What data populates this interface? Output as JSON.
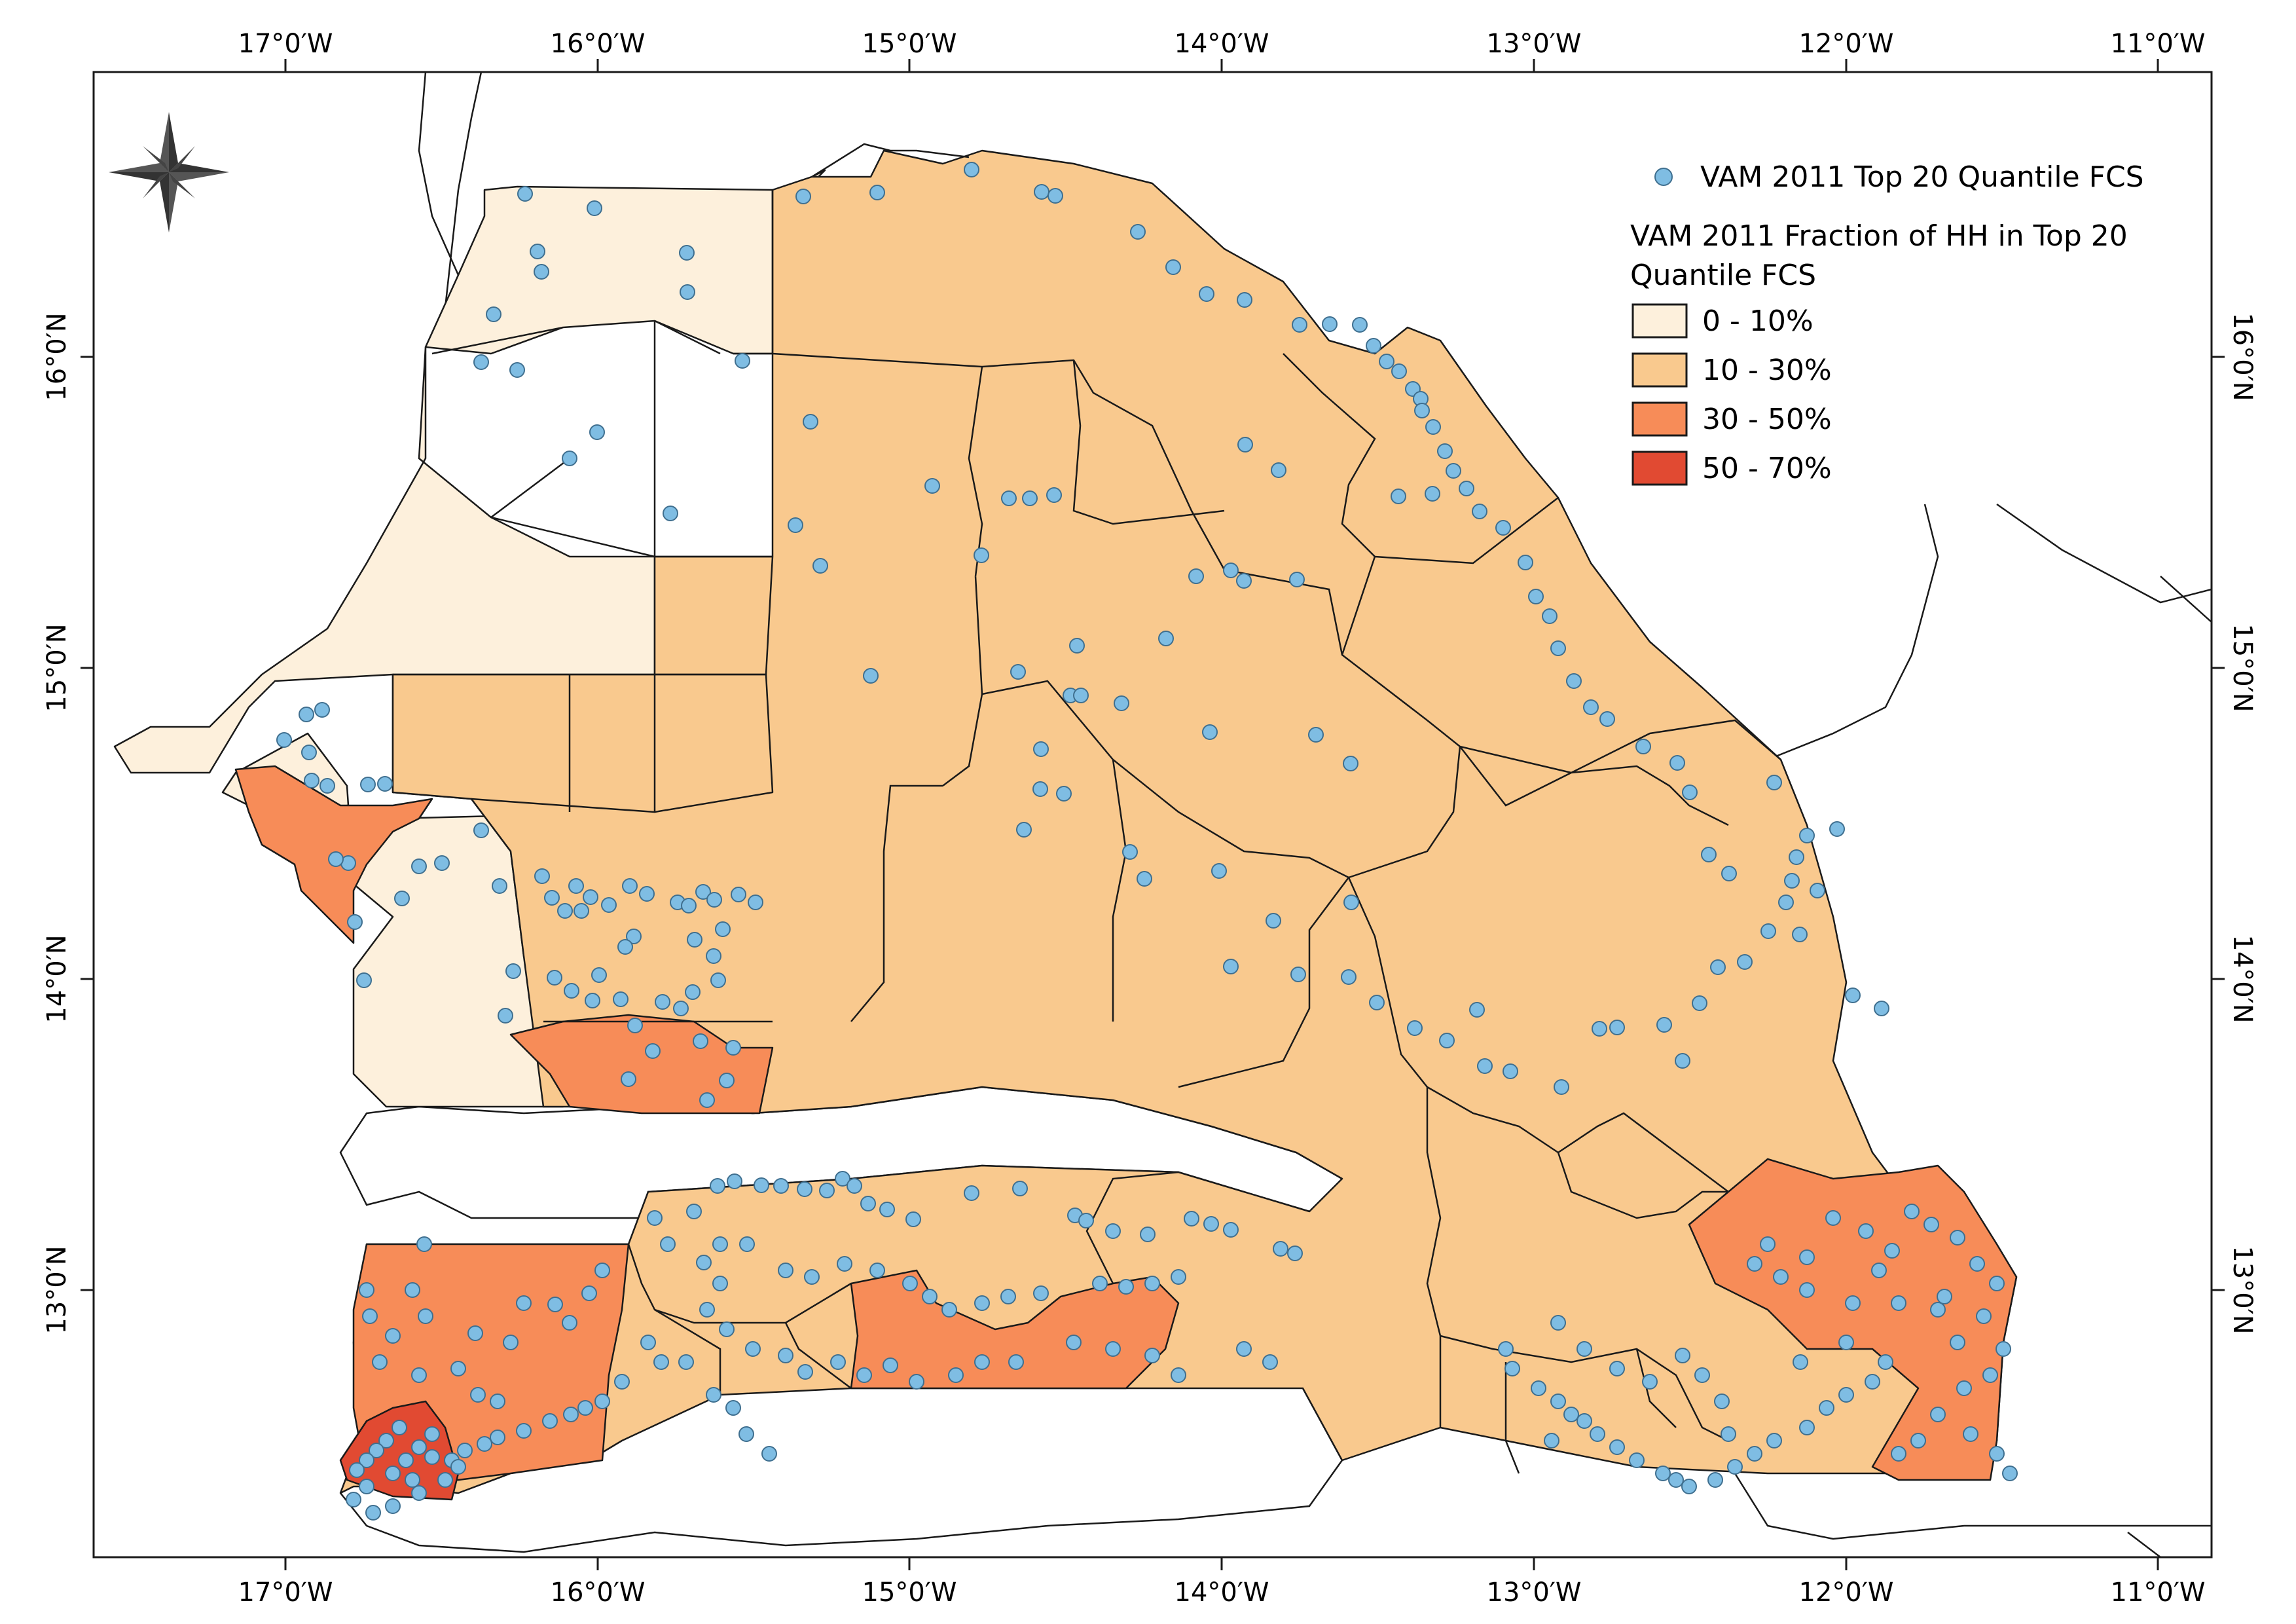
{
  "map": {
    "longitude_ticks": [
      "17°0′W",
      "16°0′W",
      "15°0′W",
      "14°0′W",
      "13°0′W",
      "12°0′W",
      "11°0′W"
    ],
    "latitude_ticks": [
      "16°0′N",
      "15°0′N",
      "14°0′N",
      "13°0′N"
    ],
    "north_arrow_icon": "compass-rose-icon"
  },
  "legend": {
    "points_label": "VAM 2011 Top 20 Quantile FCS",
    "points_color": "#7fbde3",
    "fill_title_line1": "VAM 2011 Fraction of HH in Top 20",
    "fill_title_line2": "Quantile FCS",
    "classes": [
      {
        "label": "0 - 10%",
        "color": "#fdf0dc"
      },
      {
        "label": "10 - 30%",
        "color": "#f9c98e"
      },
      {
        "label": "30 - 50%",
        "color": "#f78c58"
      },
      {
        "label": "50 - 70%",
        "color": "#e14a32"
      }
    ]
  }
}
